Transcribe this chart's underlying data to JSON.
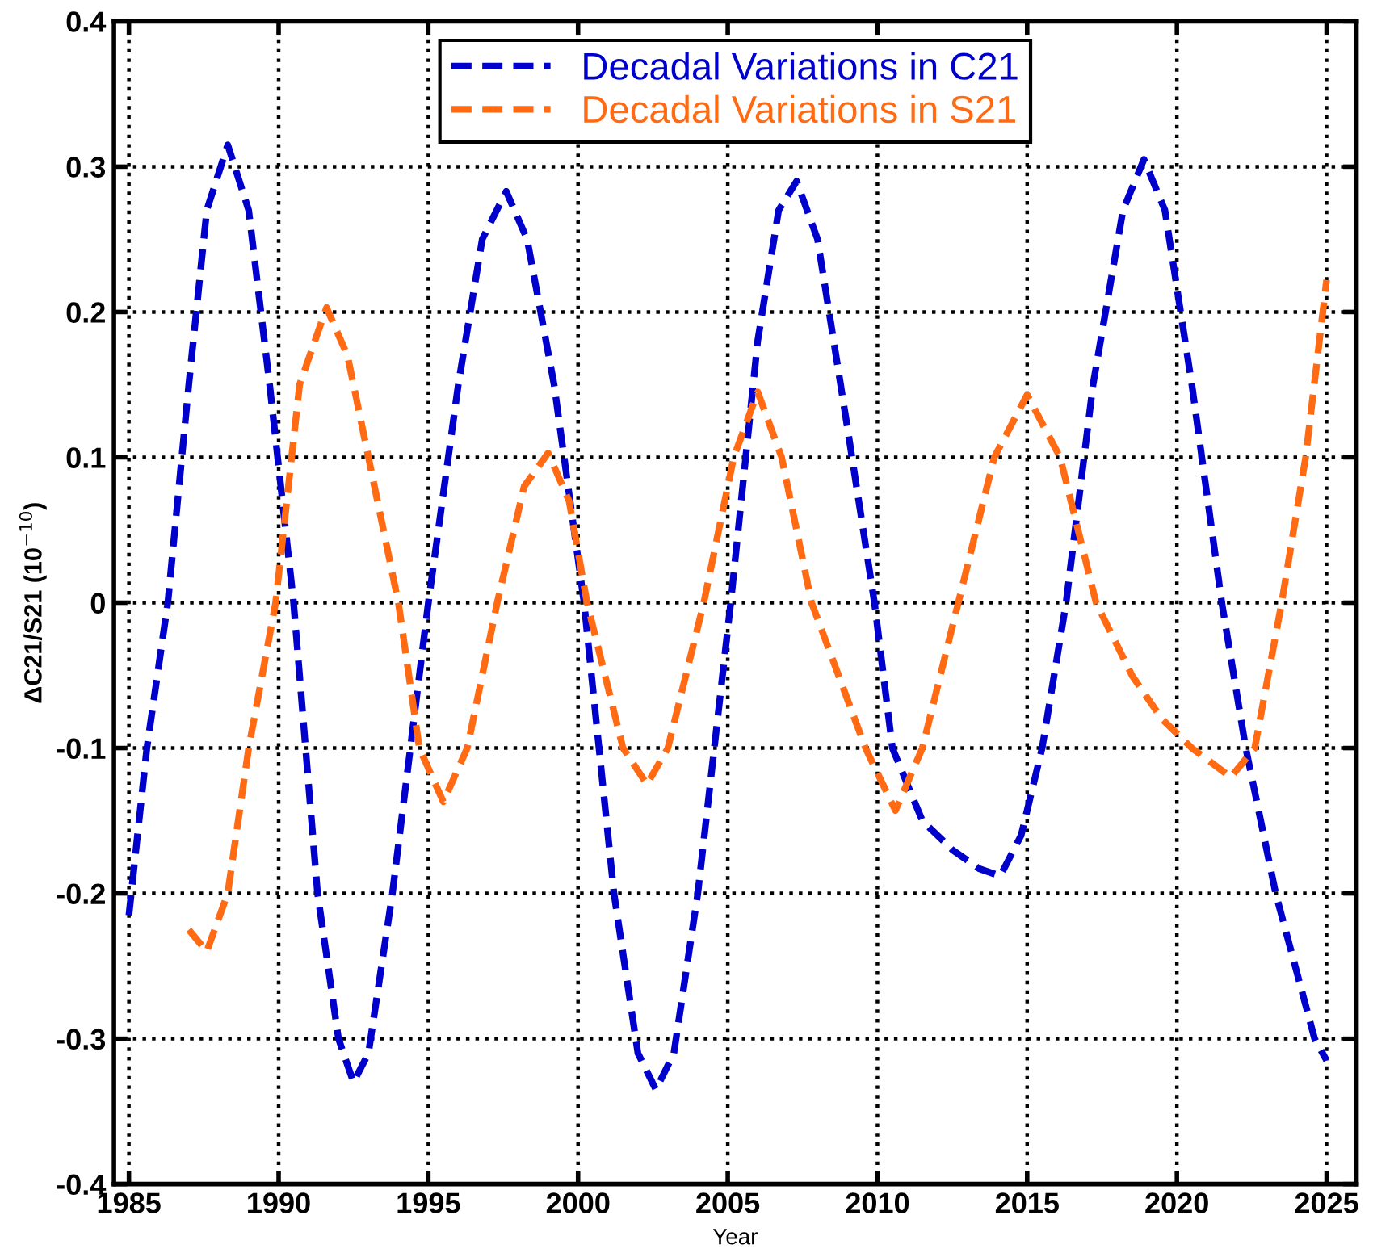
{
  "chart_data": {
    "type": "line",
    "xlabel": "Year",
    "ylabel": "ΔC21/S21 (10$^{−10}$)",
    "xlim": [
      1984.5,
      2026
    ],
    "ylim": [
      -0.4,
      0.4
    ],
    "xticks": [
      1985,
      1990,
      1995,
      2000,
      2005,
      2010,
      2015,
      2020,
      2025
    ],
    "yticks": [
      -0.4,
      -0.3,
      -0.2,
      -0.1,
      0,
      0.1,
      0.2,
      0.3,
      0.4
    ],
    "grid": true,
    "legend": "top",
    "line_style": "dashed",
    "marker": "none",
    "series": [
      {
        "name": "Decadal Variations in C21",
        "color": "#0000cc",
        "x": [
          1985,
          1985.6,
          1986.3,
          1987,
          1987.6,
          1988.3,
          1989,
          1989.7,
          1990.5,
          1991.3,
          1992,
          1992.5,
          1993,
          1993.8,
          1995,
          1996,
          1996.8,
          1997.6,
          1998.3,
          1999.2,
          2000.2,
          2001.2,
          2002,
          2002.6,
          2003.2,
          2004,
          2005.1,
          2006,
          2006.7,
          2007.3,
          2008,
          2009,
          2009.9,
          2010.5,
          2011.5,
          2012.5,
          2013.4,
          2014.1,
          2014.8,
          2015.5,
          2016.3,
          2017.2,
          2018.2,
          2018.9,
          2019.6,
          2020.5,
          2021.5,
          2022.3,
          2023.3,
          2024.6,
          2025
        ],
        "values": [
          -0.215,
          -0.1,
          0,
          0.15,
          0.27,
          0.315,
          0.27,
          0.15,
          0,
          -0.2,
          -0.3,
          -0.33,
          -0.31,
          -0.2,
          0,
          0.15,
          0.25,
          0.283,
          0.25,
          0.15,
          0,
          -0.2,
          -0.31,
          -0.335,
          -0.31,
          -0.2,
          0,
          0.18,
          0.27,
          0.29,
          0.25,
          0.12,
          0,
          -0.1,
          -0.15,
          -0.17,
          -0.183,
          -0.188,
          -0.16,
          -0.1,
          0,
          0.15,
          0.27,
          0.305,
          0.27,
          0.15,
          0,
          -0.1,
          -0.2,
          -0.3,
          -0.315
        ]
      },
      {
        "name": "Decadal Variations in S21",
        "color": "#ff6a13",
        "x": [
          1987,
          1987.6,
          1988.3,
          1989,
          1989.9,
          1990.7,
          1991.6,
          1992.3,
          1993,
          1994,
          1994.7,
          1995.5,
          1996.3,
          1997.3,
          1998.2,
          1999,
          1999.7,
          2000.3,
          2001.5,
          2002.3,
          2003,
          2004.2,
          2005.2,
          2006,
          2006.8,
          2007.8,
          2009.6,
          2010.6,
          2011.5,
          2012.7,
          2013.9,
          2015,
          2016.1,
          2017.3,
          2018.5,
          2019.5,
          2020.5,
          2021.8,
          2022.6,
          2023.5,
          2024.3,
          2025
        ],
        "values": [
          -0.225,
          -0.24,
          -0.2,
          -0.1,
          0,
          0.15,
          0.203,
          0.17,
          0.1,
          0,
          -0.1,
          -0.137,
          -0.1,
          0,
          0.08,
          0.103,
          0.07,
          0,
          -0.1,
          -0.125,
          -0.1,
          0,
          0.1,
          0.145,
          0.1,
          0,
          -0.1,
          -0.143,
          -0.1,
          0,
          0.1,
          0.143,
          0.1,
          0,
          -0.05,
          -0.08,
          -0.1,
          -0.12,
          -0.1,
          0,
          0.1,
          0.222
        ]
      }
    ]
  }
}
